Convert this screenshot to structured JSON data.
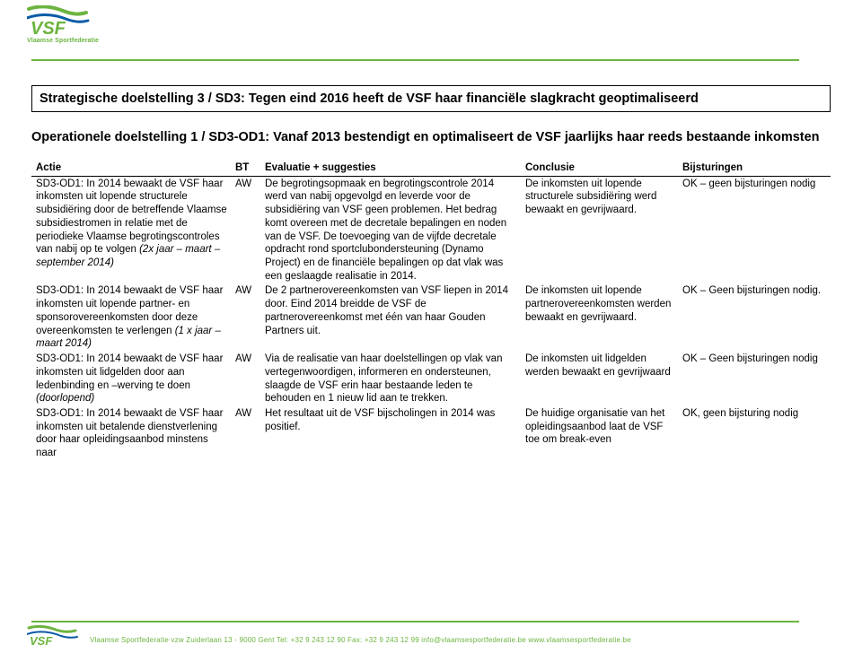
{
  "logo": {
    "text": "VSF",
    "subtext": "Vlaamse Sportfederatie",
    "primary_color": "#6cb43f",
    "accent_color": "#0a5ba6"
  },
  "sd_title": "Strategische doelstelling 3 / SD3: Tegen eind 2016 heeft de VSF haar financiële slagkracht geoptimaliseerd",
  "od_title": "Operationele doelstelling 1 / SD3-OD1: Vanaf 2013 bestendigt en optimaliseert de VSF jaarlijks haar reeds bestaande inkomsten",
  "headers": {
    "actie": "Actie",
    "bt": "BT",
    "eval": "Evaluatie + suggesties",
    "conc": "Conclusie",
    "bij": "Bijsturingen"
  },
  "rows": [
    {
      "actie_html": "SD3-OD1: In 2014 bewaakt de VSF haar inkomsten uit lopende structurele subsidiëring door de betreffende Vlaamse subsidiestromen in relatie met de periodieke Vlaamse begrotingscontroles van nabij op te volgen <span class=\"italic\">(2x jaar – maart – september 2014)</span>",
      "bt": "AW",
      "eval": "De begrotingsopmaak en begrotingscontrole 2014 werd van nabij opgevolgd en leverde voor de subsidiëring van VSF geen problemen. Het bedrag komt overeen met de decretale bepalingen en noden van de VSF. De toevoeging van de vijfde decretale opdracht rond sportclubondersteuning (Dynamo Project) en de financiële bepalingen op dat vlak was een geslaagde realisatie in 2014.",
      "conc": "De inkomsten uit lopende structurele subsidiëring werd bewaakt en gevrijwaard.",
      "bij": " OK – geen bijsturingen nodig"
    },
    {
      "actie_html": "SD3-OD1: In 2014 bewaakt de VSF haar inkomsten uit lopende partner- en sponsorovereenkomsten door deze overeenkomsten te verlengen <span class=\"italic\">(1 x jaar – maart 2014)</span>",
      "bt": "AW",
      "eval": " De 2 partnerovereenkomsten van VSF liepen in 2014 door. Eind 2014 breidde de VSF de partnerovereenkomst met één van haar Gouden Partners uit.",
      "conc": "De inkomsten uit lopende partnerovereenkomsten werden bewaakt en gevrijwaard.",
      "bij": "OK – Geen bijsturingen nodig."
    },
    {
      "actie_html": "SD3-OD1: In 2014 bewaakt de VSF haar inkomsten uit lidgelden door aan ledenbinding en –werving te doen <span class=\"italic\">(doorlopend)</span>",
      "bt": "AW",
      "eval": "Via de realisatie van haar doelstellingen op vlak van vertegenwoordigen, informeren en ondersteunen, slaagde de VSF erin haar bestaande leden te behouden en 1 nieuw lid aan te trekken.",
      "conc": "De inkomsten uit lidgelden werden bewaakt en gevrijwaard",
      "bij": "OK – Geen bijsturingen nodig"
    },
    {
      "actie_html": "SD3-OD1: In 2014 bewaakt de VSF haar inkomsten uit betalende dienstverlening door haar opleidingsaanbod minstens naar",
      "bt": "AW",
      "eval": "Het resultaat uit de VSF bijscholingen in 2014 was positief.",
      "conc": "De huidige organisatie van het opleidingsaanbod laat de VSF toe om break-even",
      "bij": "OK, geen bijsturing nodig"
    }
  ],
  "footer": "Vlaamse Sportfederatie vzw    Zuiderlaan 13 - 9000 Gent    Tel: +32 9 243 12 90    Fax: +32 9 243 12 99    info@vlaamsesportfederatie.be    www.vlaamsesportfederatie.be"
}
